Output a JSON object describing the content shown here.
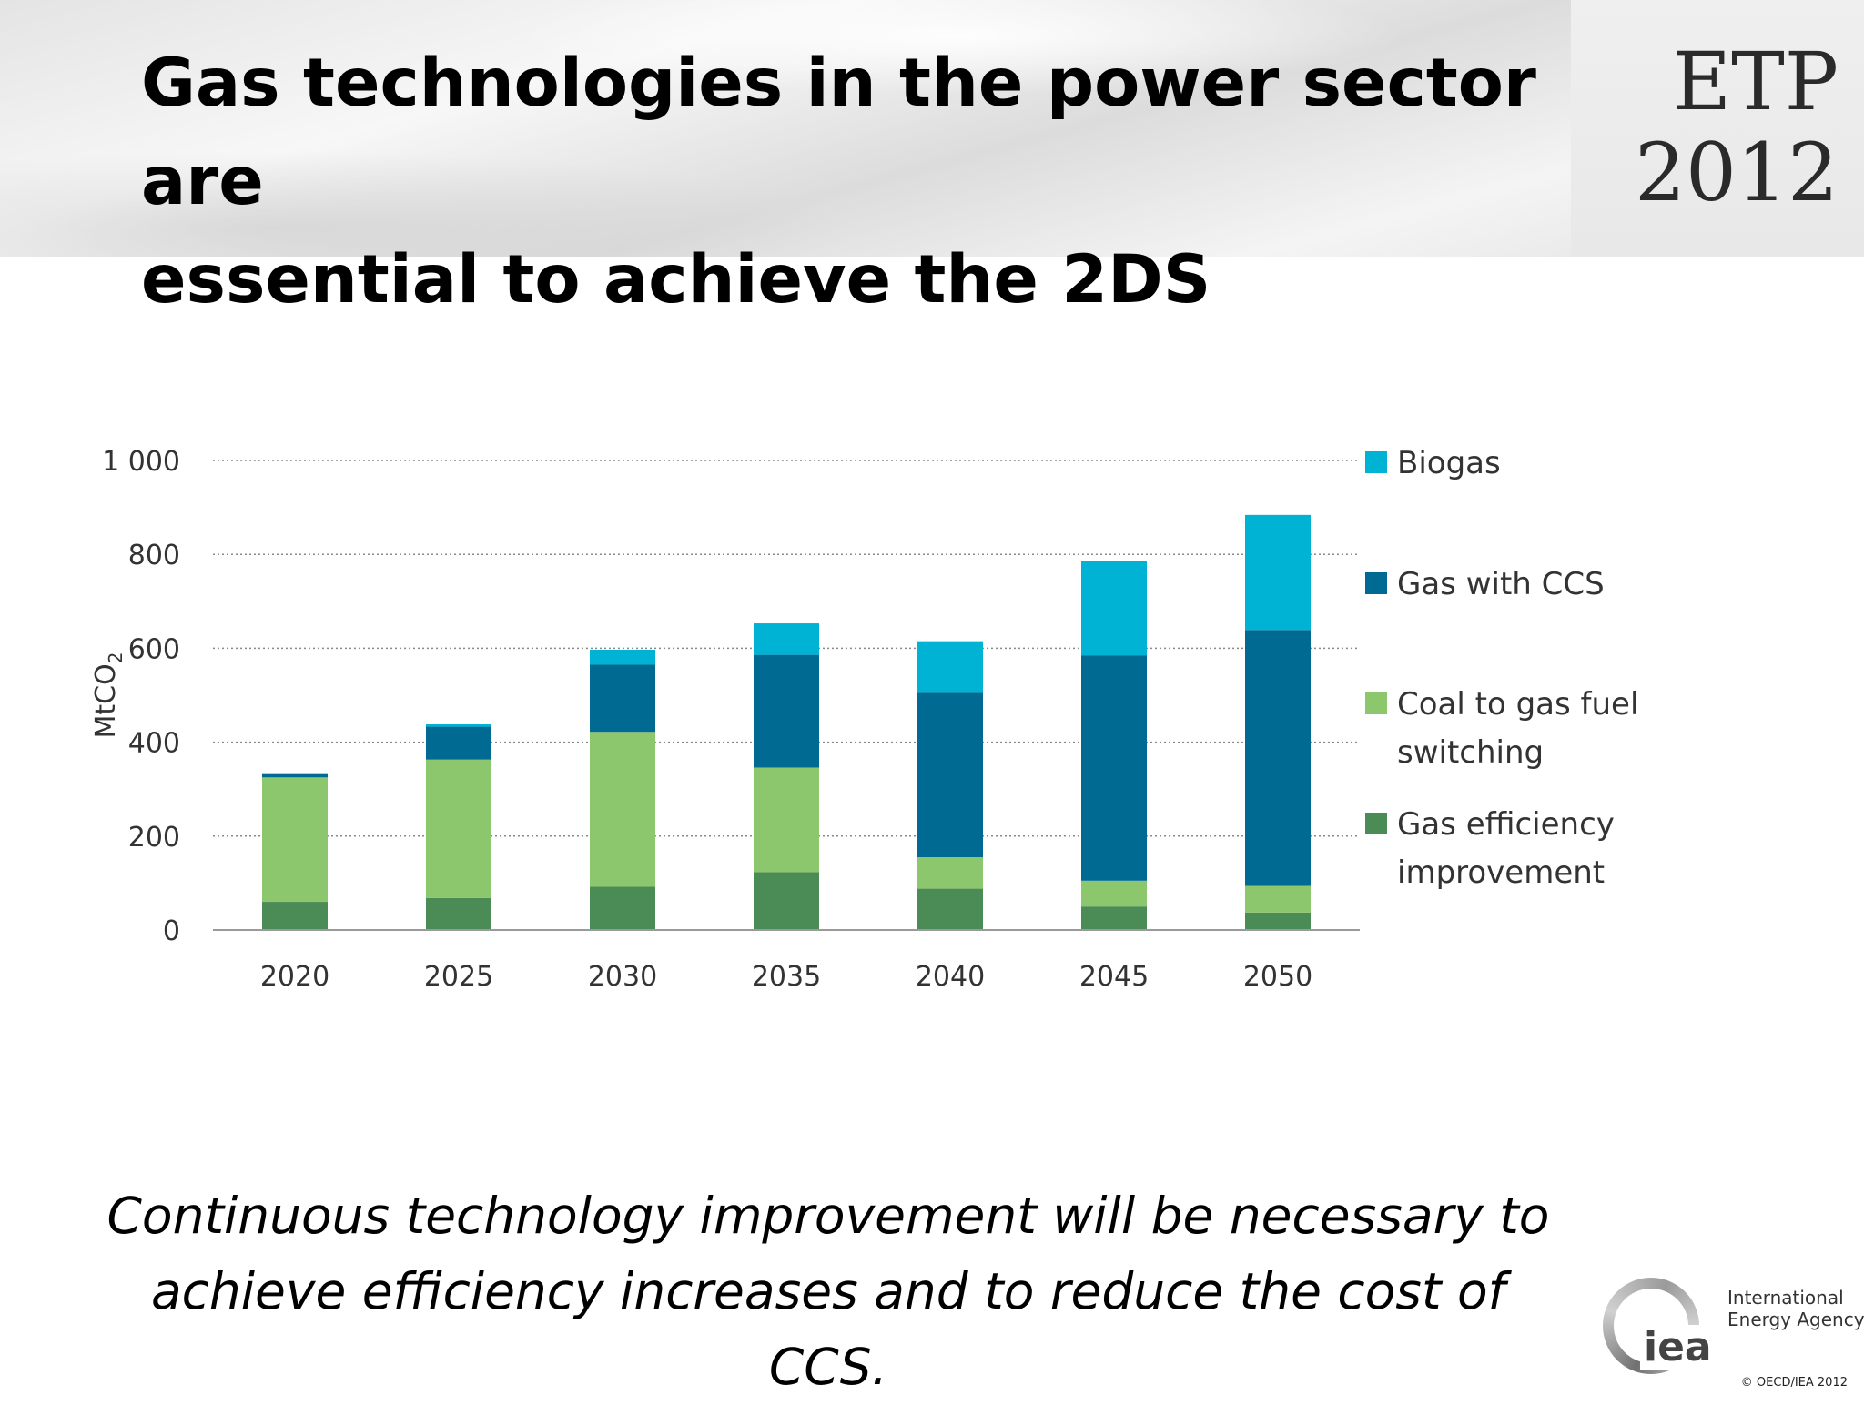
{
  "slide": {
    "title_line1": "Gas technologies in the power sector are",
    "title_line2": "essential to achieve the 2DS",
    "badge_line1": "ETP",
    "badge_line2": "2012",
    "caption_line1": "Continuous technology improvement will be necessary to",
    "caption_line2": "achieve efficiency increases and to reduce the cost of CCS.",
    "logo_abbr": "iea",
    "logo_name_line1": "International",
    "logo_name_line2": "Energy Agency",
    "copyright": "© OECD/IEA 2012"
  },
  "chart_data": {
    "type": "bar",
    "stacked": true,
    "categories": [
      "2020",
      "2025",
      "2030",
      "2035",
      "2040",
      "2045",
      "2050"
    ],
    "ylabel": "MtCO",
    "ylabel_subscript": "2",
    "ylim": [
      0,
      1000
    ],
    "yticks": [
      0,
      200,
      400,
      600,
      800,
      1000
    ],
    "ytick_labels": [
      "0",
      "200",
      "400",
      "600",
      "800",
      "1 000"
    ],
    "grid": true,
    "legend_position": "right",
    "series": [
      {
        "name": "Gas efficiency improvement",
        "legend_lines": [
          "Gas efficiency",
          "improvement"
        ],
        "color": "#4b8b55",
        "values": [
          60,
          68,
          92,
          123,
          88,
          50,
          37
        ]
      },
      {
        "name": "Coal to gas fuel switching",
        "legend_lines": [
          "Coal to gas fuel",
          "switching"
        ],
        "color": "#8cc66d",
        "values": [
          265,
          295,
          330,
          223,
          67,
          55,
          57
        ]
      },
      {
        "name": "Gas with CCS",
        "legend_lines": [
          "Gas with CCS"
        ],
        "color": "#006a92",
        "values": [
          7,
          70,
          143,
          240,
          350,
          480,
          545
        ]
      },
      {
        "name": "Biogas",
        "legend_lines": [
          "Biogas"
        ],
        "color": "#00b3d4",
        "values": [
          0,
          5,
          32,
          67,
          110,
          200,
          245
        ]
      }
    ]
  }
}
